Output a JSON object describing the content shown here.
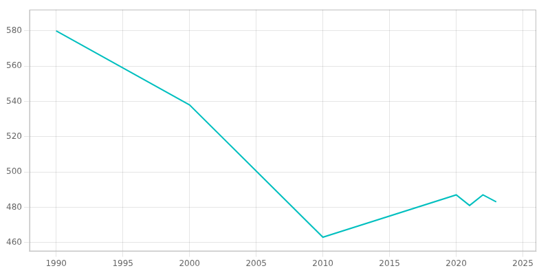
{
  "chart_data": {
    "type": "line",
    "x": [
      1990,
      2000,
      2010,
      2020,
      2021,
      2022,
      2023
    ],
    "values": [
      580,
      538,
      463,
      487,
      481,
      487,
      483
    ],
    "color": "#00BFBF",
    "xlim": [
      1988,
      2026
    ],
    "ylim": [
      455,
      592
    ],
    "xticks": [
      1990,
      1995,
      2000,
      2005,
      2010,
      2015,
      2020,
      2025
    ],
    "yticks": [
      460,
      480,
      500,
      520,
      540,
      560,
      580
    ],
    "grid": true
  }
}
